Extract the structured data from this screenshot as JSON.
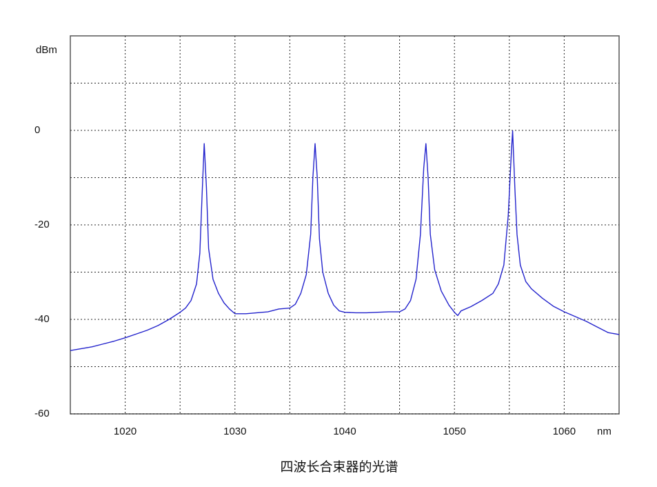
{
  "chart_data": {
    "type": "line",
    "title": "四波长合束器的光谱",
    "xlabel": "nm",
    "ylabel": "dBm",
    "x": [
      1015,
      1016,
      1017,
      1018,
      1019,
      1020,
      1021,
      1022,
      1023,
      1024,
      1025,
      1025.5,
      1026,
      1026.5,
      1026.8,
      1027,
      1027.2,
      1027.4,
      1027.6,
      1028,
      1028.5,
      1029,
      1029.5,
      1030,
      1031,
      1032,
      1033,
      1034,
      1035,
      1035.5,
      1036,
      1036.5,
      1036.9,
      1037.1,
      1037.3,
      1037.5,
      1037.7,
      1038,
      1038.5,
      1039,
      1039.5,
      1040,
      1041,
      1042,
      1043,
      1044,
      1045,
      1045.5,
      1046,
      1046.5,
      1046.9,
      1047.2,
      1047.4,
      1047.6,
      1047.8,
      1048.2,
      1048.8,
      1049.5,
      1050,
      1050.3,
      1050.6,
      1051.5,
      1052.5,
      1053.5,
      1054,
      1054.5,
      1054.9,
      1055.2,
      1055.3,
      1055.5,
      1055.7,
      1056,
      1056.5,
      1057,
      1058,
      1059,
      1060,
      1061,
      1062,
      1063,
      1064,
      1065
    ],
    "series": [
      {
        "color": "#2222cc",
        "values": [
          -46.6,
          -46.2,
          -45.8,
          -45.2,
          -44.6,
          -43.9,
          -43.1,
          -42.3,
          -41.3,
          -40.0,
          -38.5,
          -37.6,
          -36.0,
          -32.5,
          -26,
          -14,
          -2.8,
          -12,
          -25,
          -31.5,
          -34.5,
          -36.5,
          -37.8,
          -38.8,
          -38.8,
          -38.6,
          -38.4,
          -37.8,
          -37.6,
          -36.8,
          -34.5,
          -30.5,
          -22,
          -10,
          -2.8,
          -10,
          -23,
          -30,
          -34.5,
          -37,
          -38.2,
          -38.5,
          -38.6,
          -38.6,
          -38.5,
          -38.4,
          -38.4,
          -37.8,
          -36,
          -31.5,
          -22,
          -8,
          -2.8,
          -10,
          -22,
          -29.5,
          -34,
          -37,
          -38.5,
          -39.2,
          -38.2,
          -37.3,
          -36,
          -34.5,
          -32.5,
          -28.5,
          -18,
          -4,
          -0.1,
          -12,
          -22,
          -28.5,
          -32,
          -33.5,
          -35.5,
          -37.2,
          -38.4,
          -39.4,
          -40.4,
          -41.6,
          -42.8,
          -43.2
        ]
      }
    ],
    "xlim": [
      1015,
      1065
    ],
    "xticks": [
      1020,
      1030,
      1040,
      1050,
      1060
    ],
    "xminor": [
      1025,
      1035,
      1045,
      1055
    ],
    "ylim": [
      -60,
      20
    ],
    "yticks": [
      -60,
      -40,
      -20,
      0
    ],
    "yminor": [
      -50,
      -30,
      -10,
      10
    ],
    "grid": true
  }
}
